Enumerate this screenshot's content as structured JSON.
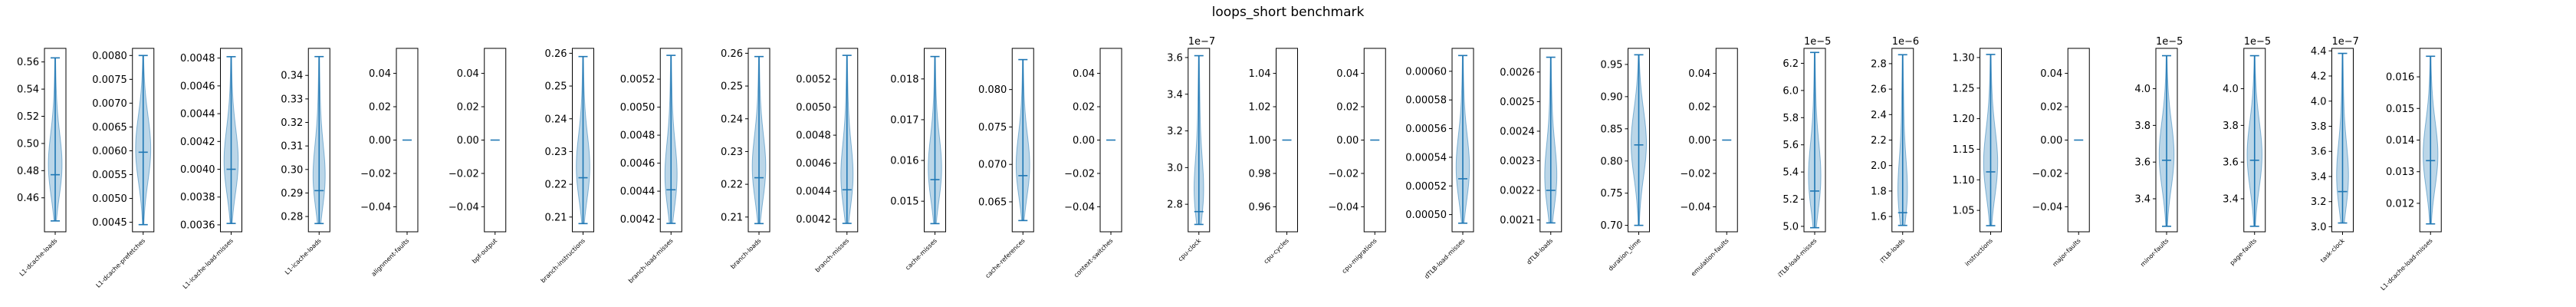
{
  "chart_data": {
    "type": "violin",
    "title": "loops_short benchmark",
    "colors": {
      "violin_fill": "#1f77b4",
      "line": "#1f77b4",
      "axis": "#000000"
    },
    "panels": [
      {
        "label": "L1-dcache-loads",
        "ticks": [
          0.46,
          0.48,
          0.5,
          0.52,
          0.54,
          0.56
        ],
        "tick_labels": [
          "0.46",
          "0.48",
          "0.50",
          "0.52",
          "0.54",
          "0.56"
        ],
        "ylim": [
          0.435,
          0.57
        ],
        "min": 0.443,
        "max": 0.563,
        "median": 0.477,
        "offset": ""
      },
      {
        "label": "L1-dcache-prefetches",
        "ticks": [
          0.0045,
          0.005,
          0.0055,
          0.006,
          0.0065,
          0.007,
          0.0075,
          0.008
        ],
        "tick_labels": [
          "0.0045",
          "0.0050",
          "0.0055",
          "0.0060",
          "0.0065",
          "0.0070",
          "0.0075",
          "0.0080"
        ],
        "ylim": [
          0.0043,
          0.00815
        ],
        "min": 0.00445,
        "max": 0.008,
        "median": 0.00597,
        "offset": ""
      },
      {
        "label": "L1-icache-load-misses",
        "ticks": [
          0.0036,
          0.0038,
          0.004,
          0.0042,
          0.0044,
          0.0046,
          0.0048
        ],
        "tick_labels": [
          "0.0036",
          "0.0038",
          "0.0040",
          "0.0042",
          "0.0044",
          "0.0046",
          "0.0048"
        ],
        "ylim": [
          0.00355,
          0.00487
        ],
        "min": 0.00361,
        "max": 0.00481,
        "median": 0.004,
        "offset": ""
      },
      {
        "label": "L1-icache-loads",
        "ticks": [
          0.28,
          0.29,
          0.3,
          0.31,
          0.32,
          0.33,
          0.34
        ],
        "tick_labels": [
          "0.28",
          "0.29",
          "0.30",
          "0.31",
          "0.32",
          "0.33",
          "0.34"
        ],
        "ylim": [
          0.2735,
          0.3515
        ],
        "min": 0.277,
        "max": 0.348,
        "median": 0.291,
        "offset": ""
      },
      {
        "label": "alignment-faults",
        "ticks": [
          -0.04,
          -0.02,
          0.0,
          0.02,
          0.04
        ],
        "tick_labels": [
          "−0.04",
          "−0.02",
          "0.00",
          "0.02",
          "0.04"
        ],
        "ylim": [
          -0.055,
          0.055
        ],
        "min": 0,
        "max": 0,
        "median": 0,
        "offset": ""
      },
      {
        "label": "bpf-output",
        "ticks": [
          -0.04,
          -0.02,
          0.0,
          0.02,
          0.04
        ],
        "tick_labels": [
          "−0.04",
          "−0.02",
          "0.00",
          "0.02",
          "0.04"
        ],
        "ylim": [
          -0.055,
          0.055
        ],
        "min": 0,
        "max": 0,
        "median": 0,
        "offset": ""
      },
      {
        "label": "branch-instructions",
        "ticks": [
          0.21,
          0.22,
          0.23,
          0.24,
          0.25,
          0.26
        ],
        "tick_labels": [
          "0.21",
          "0.22",
          "0.23",
          "0.24",
          "0.25",
          "0.26"
        ],
        "ylim": [
          0.2055,
          0.2615
        ],
        "min": 0.208,
        "max": 0.259,
        "median": 0.222,
        "offset": ""
      },
      {
        "label": "branch-load-misses",
        "ticks": [
          0.0042,
          0.0044,
          0.0046,
          0.0048,
          0.005,
          0.0052
        ],
        "tick_labels": [
          "0.0042",
          "0.0044",
          "0.0046",
          "0.0048",
          "0.0050",
          "0.0052"
        ],
        "ylim": [
          0.00411,
          0.00542
        ],
        "min": 0.00417,
        "max": 0.00537,
        "median": 0.00441,
        "offset": ""
      },
      {
        "label": "branch-loads",
        "ticks": [
          0.21,
          0.22,
          0.23,
          0.24,
          0.25,
          0.26
        ],
        "tick_labels": [
          "0.21",
          "0.22",
          "0.23",
          "0.24",
          "0.25",
          "0.26"
        ],
        "ylim": [
          0.2055,
          0.2615
        ],
        "min": 0.208,
        "max": 0.259,
        "median": 0.222,
        "offset": ""
      },
      {
        "label": "branch-misses",
        "ticks": [
          0.0042,
          0.0044,
          0.0046,
          0.0048,
          0.005,
          0.0052
        ],
        "tick_labels": [
          "0.0042",
          "0.0044",
          "0.0046",
          "0.0048",
          "0.0050",
          "0.0052"
        ],
        "ylim": [
          0.00411,
          0.00542
        ],
        "min": 0.00417,
        "max": 0.00537,
        "median": 0.00441,
        "offset": ""
      },
      {
        "label": "cache-misses",
        "ticks": [
          0.015,
          0.016,
          0.017,
          0.018
        ],
        "tick_labels": [
          "0.015",
          "0.016",
          "0.017",
          "0.018"
        ],
        "ylim": [
          0.01425,
          0.01875
        ],
        "min": 0.01445,
        "max": 0.01855,
        "median": 0.01553,
        "offset": ""
      },
      {
        "label": "cache-references",
        "ticks": [
          0.065,
          0.07,
          0.075,
          0.08
        ],
        "tick_labels": [
          "0.065",
          "0.070",
          "0.075",
          "0.080"
        ],
        "ylim": [
          0.061,
          0.0855
        ],
        "min": 0.0625,
        "max": 0.084,
        "median": 0.0685,
        "offset": ""
      },
      {
        "label": "context-switches",
        "ticks": [
          -0.04,
          -0.02,
          0.0,
          0.02,
          0.04
        ],
        "tick_labels": [
          "−0.04",
          "−0.02",
          "0.00",
          "0.02",
          "0.04"
        ],
        "ylim": [
          -0.055,
          0.055
        ],
        "min": 0,
        "max": 0,
        "median": 0,
        "offset": ""
      },
      {
        "label": "cpu-clock",
        "ticks": [
          2.8,
          3.0,
          3.2,
          3.4,
          3.6
        ],
        "tick_labels": [
          "2.8",
          "3.0",
          "3.2",
          "3.4",
          "3.6"
        ],
        "ylim": [
          2.65,
          3.65
        ],
        "min": 2.69,
        "max": 3.61,
        "median": 2.76,
        "offset": "1e−7"
      },
      {
        "label": "cpu-cycles",
        "ticks": [
          0.96,
          0.98,
          1.0,
          1.02,
          1.04
        ],
        "tick_labels": [
          "0.96",
          "0.98",
          "1.00",
          "1.02",
          "1.04"
        ],
        "ylim": [
          0.945,
          1.055
        ],
        "min": 1,
        "max": 1,
        "median": 1,
        "offset": ""
      },
      {
        "label": "cpu-migrations",
        "ticks": [
          -0.04,
          -0.02,
          0.0,
          0.02,
          0.04
        ],
        "tick_labels": [
          "−0.04",
          "−0.02",
          "0.00",
          "0.02",
          "0.04"
        ],
        "ylim": [
          -0.055,
          0.055
        ],
        "min": 0,
        "max": 0,
        "median": 0,
        "offset": ""
      },
      {
        "label": "dTLB-load-misses",
        "ticks": [
          0.0005,
          0.00052,
          0.00054,
          0.00056,
          0.00058,
          0.0006
        ],
        "tick_labels": [
          "0.00050",
          "0.00052",
          "0.00054",
          "0.00056",
          "0.00058",
          "0.00060"
        ],
        "ylim": [
          0.000488,
          0.000616
        ],
        "min": 0.000494,
        "max": 0.000611,
        "median": 0.000525,
        "offset": ""
      },
      {
        "label": "dTLB-loads",
        "ticks": [
          0.0021,
          0.0022,
          0.0023,
          0.0024,
          0.0025,
          0.0026
        ],
        "tick_labels": [
          "0.0021",
          "0.0022",
          "0.0023",
          "0.0024",
          "0.0025",
          "0.0026"
        ],
        "ylim": [
          0.00206,
          0.00268
        ],
        "min": 0.00209,
        "max": 0.00265,
        "median": 0.0022,
        "offset": ""
      },
      {
        "label": "duration_time",
        "ticks": [
          0.7,
          0.75,
          0.8,
          0.85,
          0.9,
          0.95
        ],
        "tick_labels": [
          "0.70",
          "0.75",
          "0.80",
          "0.85",
          "0.90",
          "0.95"
        ],
        "ylim": [
          0.69,
          0.975
        ],
        "min": 0.7,
        "max": 0.965,
        "median": 0.825,
        "offset": ""
      },
      {
        "label": "emulation-faults",
        "ticks": [
          -0.04,
          -0.02,
          0.0,
          0.02,
          0.04
        ],
        "tick_labels": [
          "−0.04",
          "−0.02",
          "0.00",
          "0.02",
          "0.04"
        ],
        "ylim": [
          -0.055,
          0.055
        ],
        "min": 0,
        "max": 0,
        "median": 0,
        "offset": ""
      },
      {
        "label": "iTLB-load-misses",
        "ticks": [
          5.0,
          5.2,
          5.4,
          5.6,
          5.8,
          6.0,
          6.2
        ],
        "tick_labels": [
          "5.0",
          "5.2",
          "5.4",
          "5.6",
          "5.8",
          "6.0",
          "6.2"
        ],
        "ylim": [
          4.96,
          6.31
        ],
        "min": 4.99,
        "max": 6.28,
        "median": 5.26,
        "offset": "1e−5"
      },
      {
        "label": "iTLB-loads",
        "ticks": [
          1.6,
          1.8,
          2.0,
          2.2,
          2.4,
          2.6,
          2.8
        ],
        "tick_labels": [
          "1.6",
          "1.8",
          "2.0",
          "2.2",
          "2.4",
          "2.6",
          "2.8"
        ],
        "ylim": [
          1.48,
          2.92
        ],
        "min": 1.53,
        "max": 2.87,
        "median": 1.63,
        "offset": "1e−6"
      },
      {
        "label": "instructions",
        "ticks": [
          1.05,
          1.1,
          1.15,
          1.2,
          1.25,
          1.3
        ],
        "tick_labels": [
          "1.05",
          "1.10",
          "1.15",
          "1.20",
          "1.25",
          "1.30"
        ],
        "ylim": [
          1.015,
          1.315
        ],
        "min": 1.025,
        "max": 1.305,
        "median": 1.113,
        "offset": ""
      },
      {
        "label": "major-faults",
        "ticks": [
          -0.04,
          -0.02,
          0.0,
          0.02,
          0.04
        ],
        "tick_labels": [
          "−0.04",
          "−0.02",
          "0.00",
          "0.02",
          "0.04"
        ],
        "ylim": [
          -0.055,
          0.055
        ],
        "min": 0,
        "max": 0,
        "median": 0,
        "offset": ""
      },
      {
        "label": "minor-faults",
        "ticks": [
          3.4,
          3.6,
          3.8,
          4.0
        ],
        "tick_labels": [
          "3.4",
          "3.6",
          "3.8",
          "4.0"
        ],
        "ylim": [
          3.22,
          4.22
        ],
        "min": 3.25,
        "max": 4.18,
        "median": 3.61,
        "offset": "1e−5"
      },
      {
        "label": "page-faults",
        "ticks": [
          3.4,
          3.6,
          3.8,
          4.0
        ],
        "tick_labels": [
          "3.4",
          "3.6",
          "3.8",
          "4.0"
        ],
        "ylim": [
          3.22,
          4.22
        ],
        "min": 3.25,
        "max": 4.18,
        "median": 3.61,
        "offset": "1e−5"
      },
      {
        "label": "task-clock",
        "ticks": [
          3.0,
          3.2,
          3.4,
          3.6,
          3.8,
          4.0,
          4.2,
          4.4
        ],
        "tick_labels": [
          "3.0",
          "3.2",
          "3.4",
          "3.6",
          "3.8",
          "4.0",
          "4.2",
          "4.4"
        ],
        "ylim": [
          2.96,
          4.42
        ],
        "min": 3.03,
        "max": 4.38,
        "median": 3.28,
        "offset": "1e−7"
      },
      {
        "label": "L1-dcache-load-misses",
        "ticks": [
          0.012,
          0.013,
          0.014,
          0.015,
          0.016
        ],
        "tick_labels": [
          "0.012",
          "0.013",
          "0.014",
          "0.015",
          "0.016"
        ],
        "ylim": [
          0.0111,
          0.0169
        ],
        "min": 0.01135,
        "max": 0.01665,
        "median": 0.01335,
        "offset": ""
      }
    ]
  }
}
